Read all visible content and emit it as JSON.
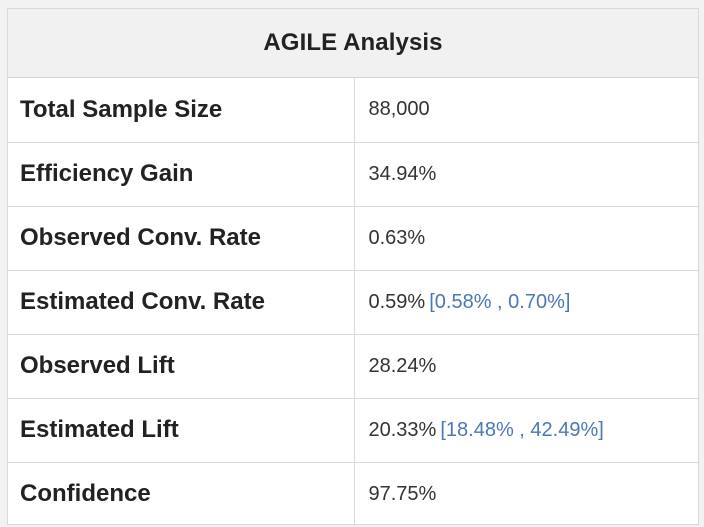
{
  "header": {
    "title": "AGILE Analysis"
  },
  "rows": [
    {
      "label": "Total Sample Size",
      "value": "88,000",
      "interval": ""
    },
    {
      "label": "Efficiency Gain",
      "value": "34.94%",
      "interval": ""
    },
    {
      "label": "Observed Conv. Rate",
      "value": "0.63%",
      "interval": ""
    },
    {
      "label": "Estimated Conv. Rate",
      "value": "0.59%",
      "interval": "[0.58% , 0.70%]"
    },
    {
      "label": "Observed Lift",
      "value": "28.24%",
      "interval": ""
    },
    {
      "label": "Estimated Lift",
      "value": "20.33%",
      "interval": "[18.48% , 42.49%]"
    },
    {
      "label": "Confidence",
      "value": "97.75%",
      "interval": ""
    }
  ],
  "colors": {
    "interval_text": "#4a78b8",
    "header_background": "#f1f1f1"
  }
}
